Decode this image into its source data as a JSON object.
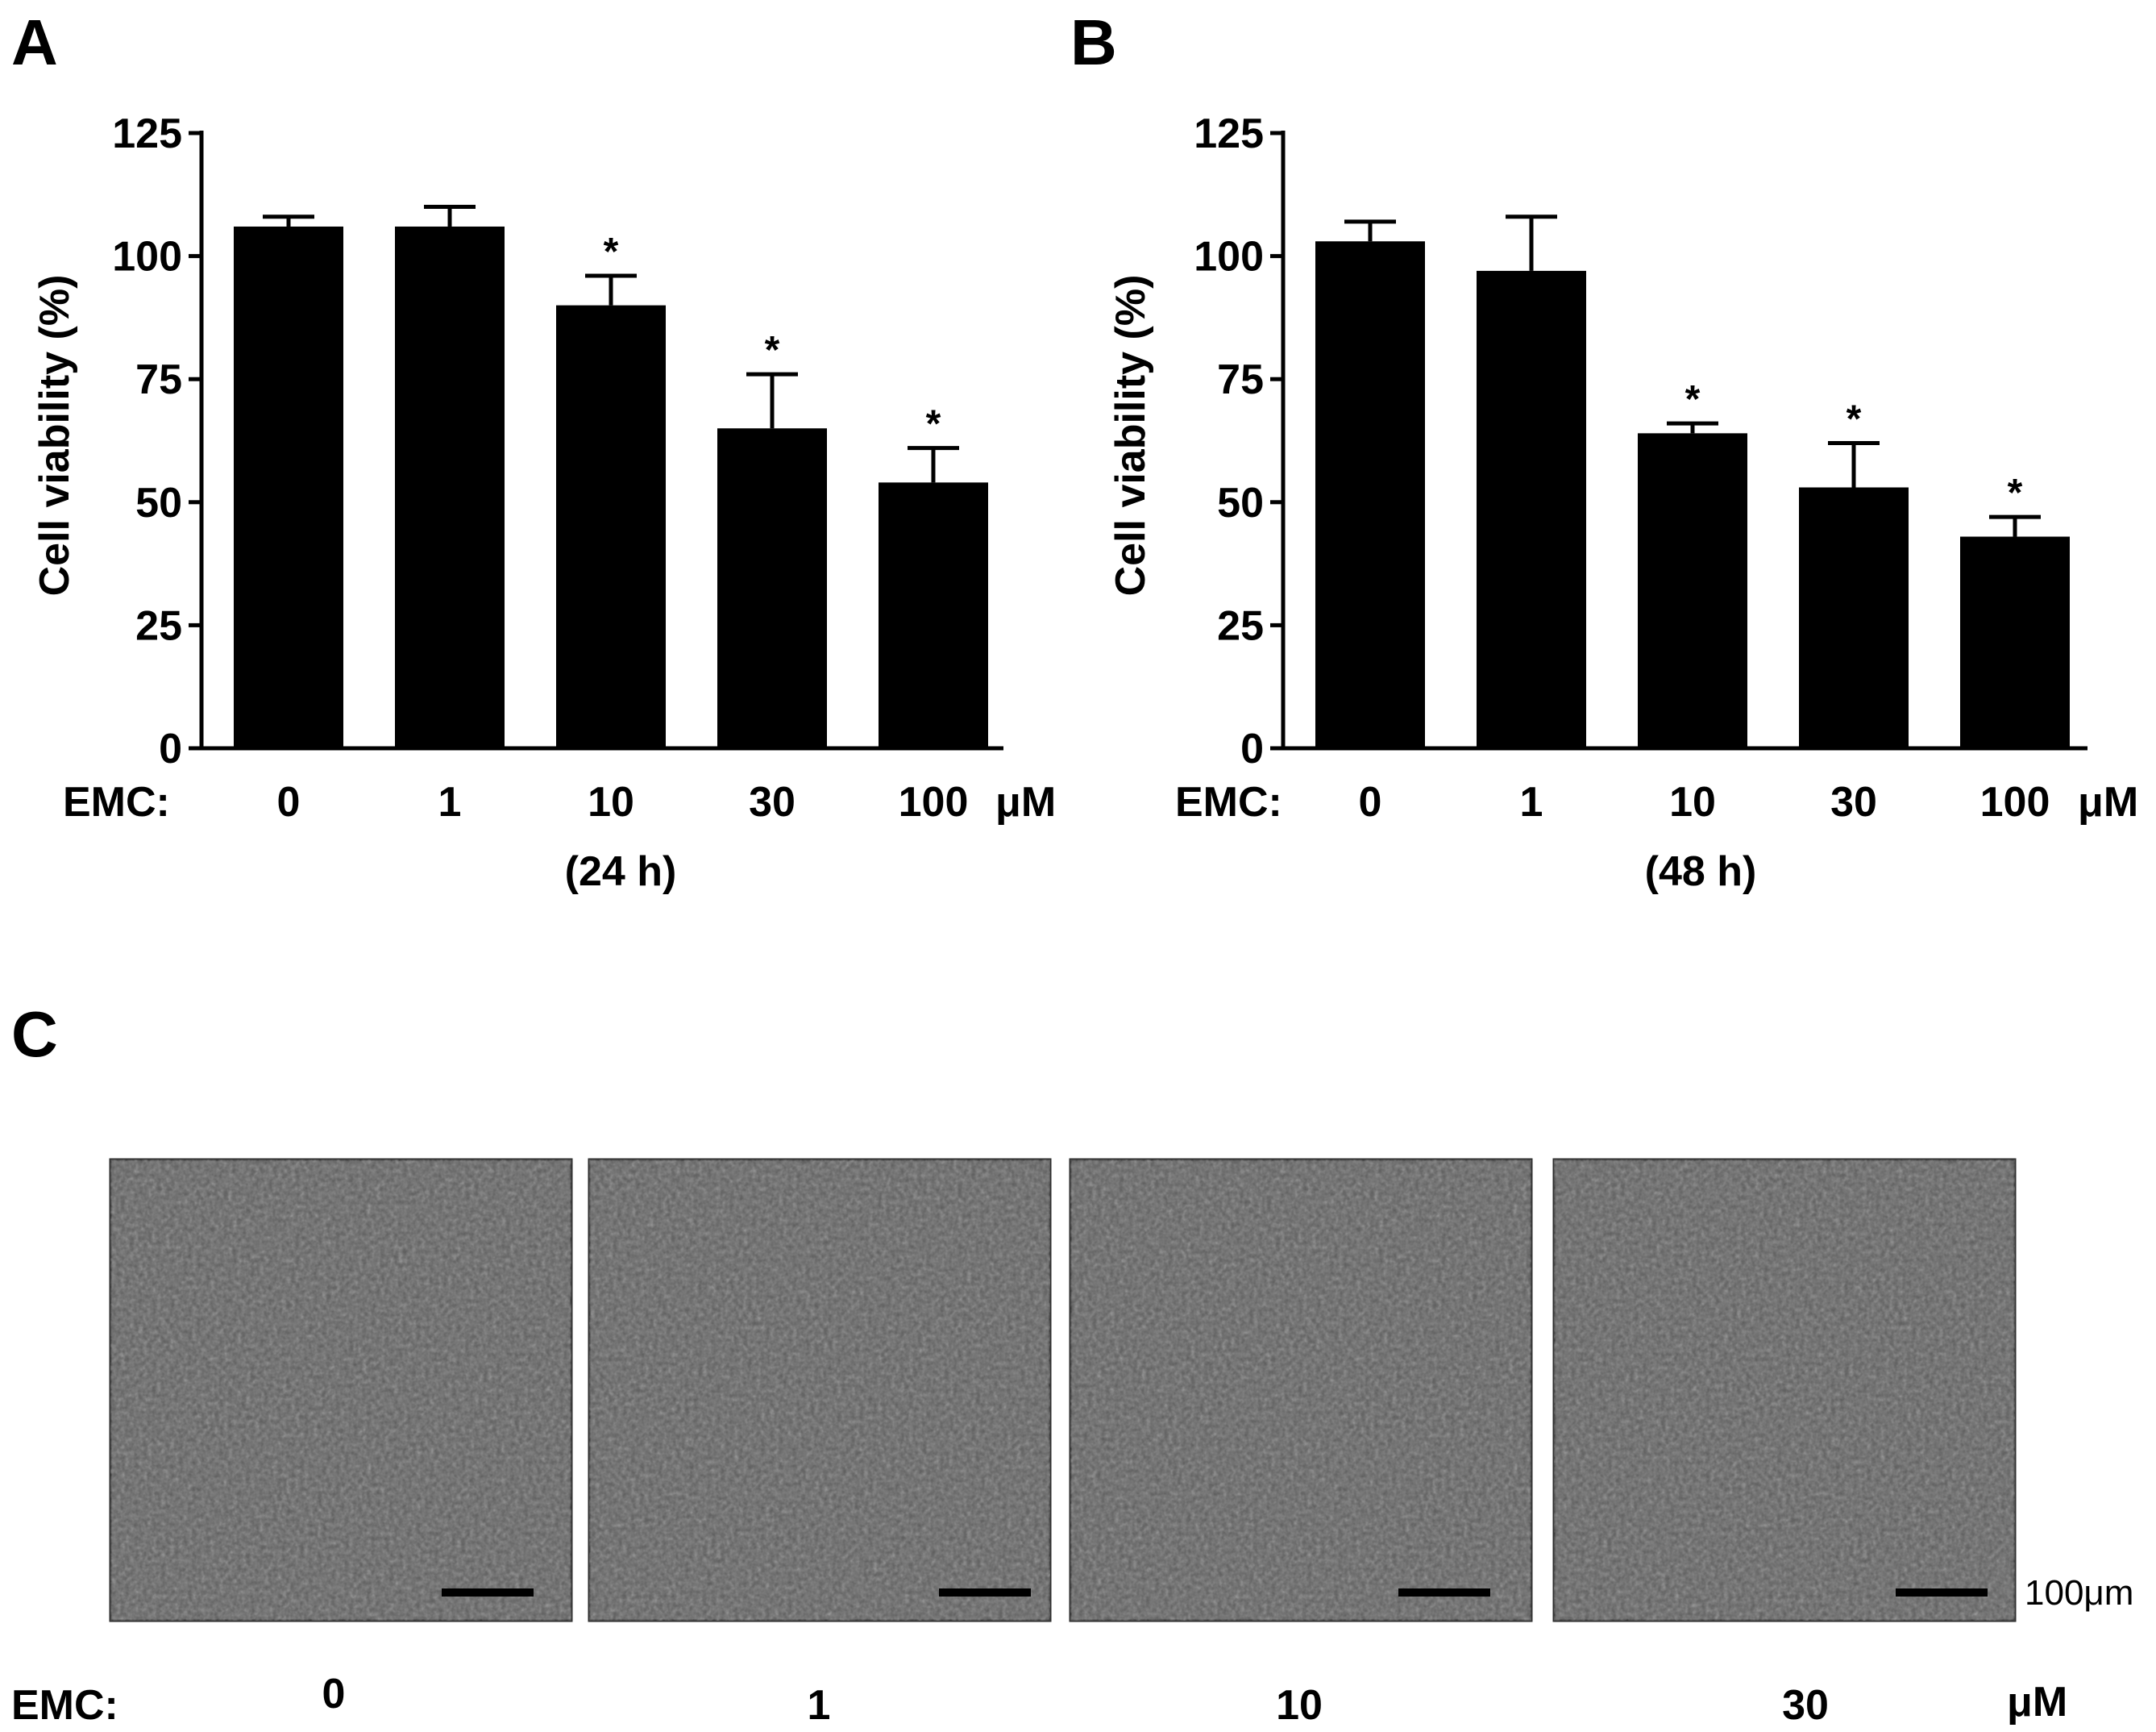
{
  "panels": {
    "A": {
      "letter": "A"
    },
    "B": {
      "letter": "B"
    },
    "C": {
      "letter": "C",
      "prefix": "EMC:",
      "concentrations": [
        "0",
        "1",
        "10",
        "30"
      ],
      "unit": "μM",
      "scale_bar_label": "100μm"
    }
  },
  "chart_data": [
    {
      "id": "A",
      "type": "bar",
      "ylabel": "Cell viability (%)",
      "ylim": [
        0,
        125
      ],
      "yticks": [
        "0",
        "25",
        "50",
        "75",
        "100",
        "125"
      ],
      "x_prefix": "EMC:",
      "x_unit": "μM",
      "categories": [
        "0",
        "1",
        "10",
        "30",
        "100"
      ],
      "values": [
        106,
        106,
        90,
        65,
        54
      ],
      "errors": [
        2,
        4,
        6,
        11,
        7
      ],
      "significance": [
        "",
        "",
        "*",
        "*",
        "*"
      ],
      "subtitle": "(24 h)",
      "bar_color": "#000000"
    },
    {
      "id": "B",
      "type": "bar",
      "ylabel": "Cell viability (%)",
      "ylim": [
        0,
        125
      ],
      "yticks": [
        "0",
        "25",
        "50",
        "75",
        "100",
        "125"
      ],
      "x_prefix": "EMC:",
      "x_unit": "μM",
      "categories": [
        "0",
        "1",
        "10",
        "30",
        "100"
      ],
      "values": [
        103,
        97,
        64,
        53,
        43
      ],
      "errors": [
        4,
        11,
        2,
        9,
        4
      ],
      "significance": [
        "",
        "",
        "*",
        "*",
        "*"
      ],
      "subtitle": "(48 h)",
      "bar_color": "#000000"
    }
  ],
  "colors": {
    "micrograph_background": "#5b5b5b",
    "scale_bar": "#000000"
  }
}
